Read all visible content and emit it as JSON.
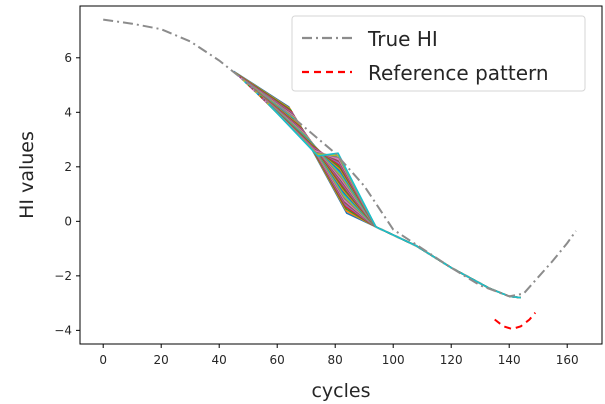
{
  "chart_data": {
    "type": "line",
    "xlabel": "cycles",
    "ylabel": "HI values",
    "xlim": [
      -8,
      172
    ],
    "ylim": [
      -4.5,
      7.9
    ],
    "xticks": [
      0,
      20,
      40,
      60,
      80,
      100,
      120,
      140,
      160
    ],
    "yticks": [
      -4,
      -2,
      0,
      2,
      4,
      6
    ],
    "grid": false,
    "legend_position": "top-right",
    "series": [
      {
        "name": "True HI",
        "color": "#8c8c8c",
        "dash": "dash-dot",
        "x": [
          0,
          10,
          20,
          30,
          40,
          50,
          60,
          70,
          80,
          90,
          100,
          110,
          120,
          130,
          140,
          145,
          150,
          155,
          160,
          163
        ],
        "y": [
          7.4,
          7.25,
          7.05,
          6.6,
          5.9,
          5.05,
          4.3,
          3.4,
          2.5,
          1.3,
          -0.3,
          -1.0,
          -1.7,
          -2.35,
          -2.75,
          -2.65,
          -2.05,
          -1.45,
          -0.8,
          -0.35
        ]
      },
      {
        "name": "Reference pattern",
        "color": "#ff0000",
        "dash": "dashed",
        "x": [
          135,
          138,
          141,
          144,
          147,
          149
        ],
        "y": [
          -3.6,
          -3.85,
          -3.95,
          -3.85,
          -3.6,
          -3.35
        ]
      }
    ]
  }
}
